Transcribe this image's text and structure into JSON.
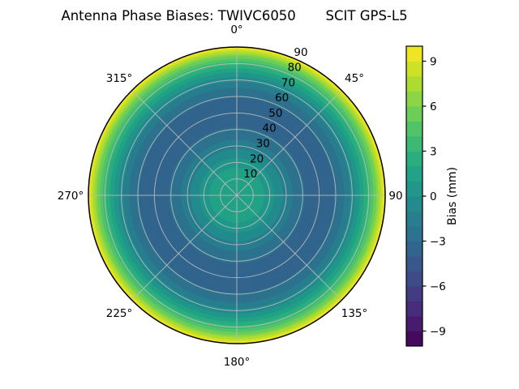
{
  "title": "Antenna Phase Biases: TWIVC6050       SCIT GPS-L5",
  "chart_data": {
    "type": "heatmap",
    "projection": "polar",
    "title": "Antenna Phase Biases: TWIVC6050       SCIT GPS-L5",
    "station": "TWIVC6050",
    "signal": "SCIT GPS-L5",
    "angular_ticks": [
      {
        "angle_deg": 0,
        "label": "0°"
      },
      {
        "angle_deg": 45,
        "label": "45°"
      },
      {
        "angle_deg": 90,
        "label": "90"
      },
      {
        "angle_deg": 135,
        "label": "135°"
      },
      {
        "angle_deg": 180,
        "label": "180°"
      },
      {
        "angle_deg": 225,
        "label": "225°"
      },
      {
        "angle_deg": 270,
        "label": "270°"
      },
      {
        "angle_deg": 315,
        "label": "315°"
      }
    ],
    "radial_ticks": [
      {
        "r": 10,
        "label": "10"
      },
      {
        "r": 20,
        "label": "20"
      },
      {
        "r": 30,
        "label": "30"
      },
      {
        "r": 40,
        "label": "40"
      },
      {
        "r": 50,
        "label": "50"
      },
      {
        "r": 60,
        "label": "60"
      },
      {
        "r": 70,
        "label": "70"
      },
      {
        "r": 80,
        "label": "80"
      },
      {
        "r": 90,
        "label": "90"
      }
    ],
    "radial_range": [
      0,
      90
    ],
    "radial_label_angle_deg": 22.5,
    "colormap": "viridis",
    "levels": {
      "min": -10,
      "max": 10,
      "step": 1
    },
    "colorbar": {
      "label": "Bias (mm)",
      "ticks": [
        {
          "value": 9,
          "label": "9"
        },
        {
          "value": 6,
          "label": "6"
        },
        {
          "value": 3,
          "label": "3"
        },
        {
          "value": 0,
          "label": "0"
        },
        {
          "value": -3,
          "label": "−3"
        },
        {
          "value": -6,
          "label": "−6"
        },
        {
          "value": -9,
          "label": "−9"
        }
      ]
    },
    "radial_profile_mm": [
      [
        0,
        0.8
      ],
      [
        5,
        1.2
      ],
      [
        10,
        1.5
      ],
      [
        15,
        1.2
      ],
      [
        20,
        0.5
      ],
      [
        25,
        -0.5
      ],
      [
        30,
        -1.4
      ],
      [
        35,
        -2.2
      ],
      [
        40,
        -2.9
      ],
      [
        45,
        -3.3
      ],
      [
        50,
        -3.5
      ],
      [
        55,
        -3.4
      ],
      [
        60,
        -2.9
      ],
      [
        65,
        -2.0
      ],
      [
        70,
        -0.6
      ],
      [
        75,
        1.2
      ],
      [
        80,
        3.5
      ],
      [
        85,
        6.3
      ],
      [
        90,
        10.0
      ]
    ],
    "viridis_stops": [
      [
        0.0,
        "#440154"
      ],
      [
        0.1,
        "#482475"
      ],
      [
        0.2,
        "#414487"
      ],
      [
        0.3,
        "#355f8d"
      ],
      [
        0.4,
        "#2a788e"
      ],
      [
        0.5,
        "#21918c"
      ],
      [
        0.6,
        "#22a884"
      ],
      [
        0.7,
        "#44bf70"
      ],
      [
        0.8,
        "#7ad151"
      ],
      [
        0.9,
        "#bddf26"
      ],
      [
        1.0,
        "#fde725"
      ]
    ],
    "grid_color": "#bcbcbc",
    "spine_color": "#000000",
    "background": "#ffffff"
  }
}
